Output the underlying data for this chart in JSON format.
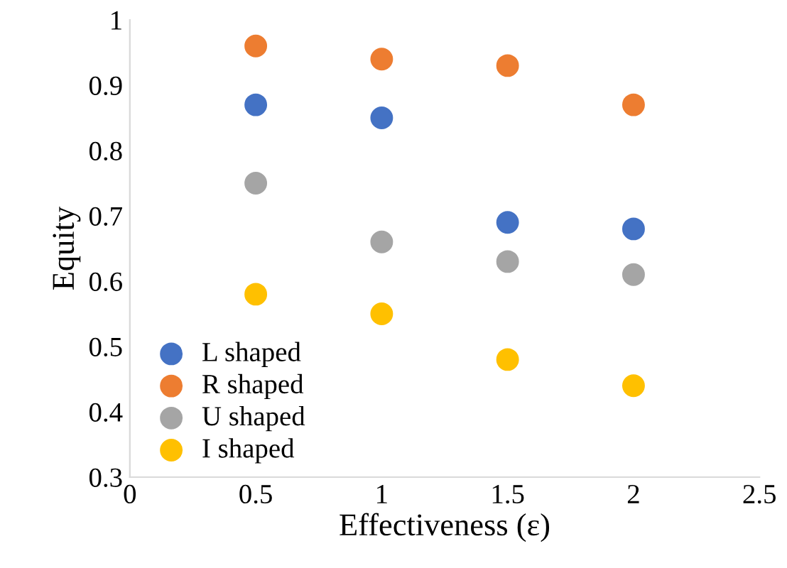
{
  "chart_data": {
    "type": "scatter",
    "xlabel": "Effectiveness (ε)",
    "ylabel": "Equity",
    "x": [
      0.5,
      1,
      1.5,
      2
    ],
    "series": [
      {
        "name": "L shaped",
        "color": "#4472c4",
        "values": [
          0.87,
          0.85,
          0.69,
          0.68
        ]
      },
      {
        "name": "R shaped",
        "color": "#ed7d31",
        "values": [
          0.96,
          0.94,
          0.93,
          0.87
        ]
      },
      {
        "name": "U shaped",
        "color": "#a5a5a5",
        "values": [
          0.75,
          0.66,
          0.63,
          0.61
        ]
      },
      {
        "name": "I shaped",
        "color": "#ffc000",
        "values": [
          0.58,
          0.55,
          0.48,
          0.44
        ]
      }
    ],
    "xlim": [
      0,
      2.5
    ],
    "xticks": [
      0,
      0.5,
      1,
      1.5,
      2,
      2.5
    ],
    "ylim": [
      0.3,
      1
    ],
    "yticks": [
      0.3,
      0.4,
      0.5,
      0.6,
      0.7,
      0.8,
      0.9,
      1
    ],
    "grid": false,
    "legend": "bottom left",
    "marker": "circle"
  }
}
